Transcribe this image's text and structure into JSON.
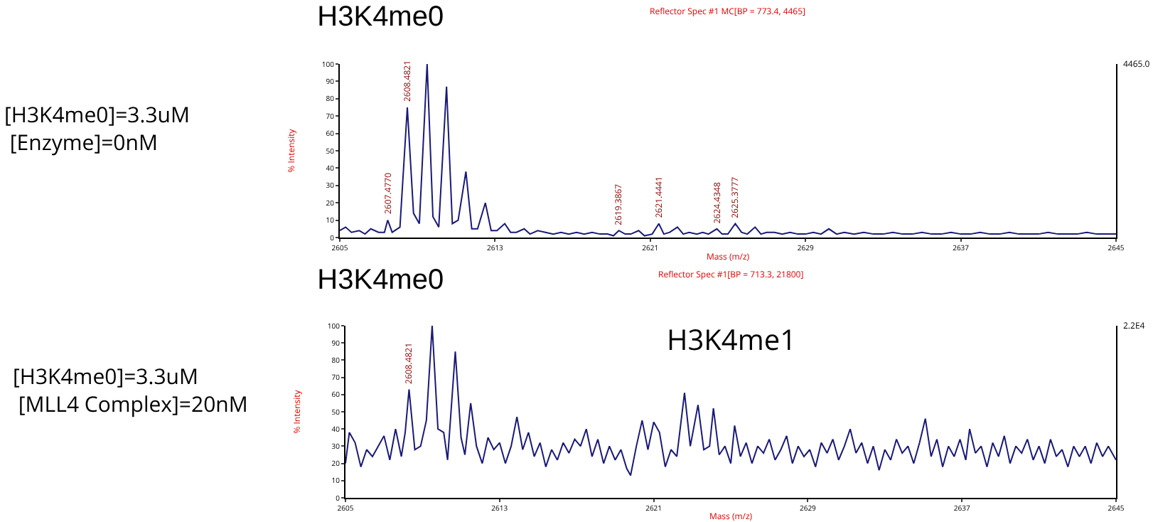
{
  "chart_data": [
    {
      "type": "line",
      "title": "H3K4me0",
      "subtitle": "Reflector Spec #1 MC[BP = 773.4, 4465]",
      "xlabel": "Mass (m/z)",
      "ylabel": "% Intensity",
      "xlim": [
        2605,
        2645
      ],
      "xticks": [
        2605,
        2613,
        2621,
        2629,
        2637,
        2645
      ],
      "ylim": [
        0,
        100
      ],
      "yticks": [
        0,
        10,
        20,
        30,
        40,
        50,
        60,
        70,
        80,
        90,
        100
      ],
      "grid": false,
      "marker": "none",
      "line_style": "solid",
      "series": [
        {
          "color": "#1a1a7a",
          "x": [
            2605,
            2605.3,
            2605.6,
            2606,
            2606.3,
            2606.6,
            2607,
            2607.3,
            2607.47,
            2607.7,
            2608.1,
            2608.48,
            2608.8,
            2609.1,
            2609.5,
            2609.8,
            2610.1,
            2610.5,
            2610.8,
            2611.1,
            2611.5,
            2611.8,
            2612.1,
            2612.5,
            2612.8,
            2613.1,
            2613.5,
            2613.8,
            2614.1,
            2614.5,
            2614.8,
            2615.2,
            2615.6,
            2616,
            2616.4,
            2616.8,
            2617.2,
            2617.6,
            2618,
            2618.4,
            2618.8,
            2619.1,
            2619.38,
            2619.7,
            2620,
            2620.4,
            2620.7,
            2621.1,
            2621.44,
            2621.7,
            2622,
            2622.4,
            2622.7,
            2623,
            2623.4,
            2623.7,
            2624,
            2624.43,
            2624.7,
            2625,
            2625.38,
            2625.7,
            2626,
            2626.4,
            2626.7,
            2627,
            2627.4,
            2627.8,
            2628.2,
            2628.6,
            2629,
            2629.4,
            2629.8,
            2630.2,
            2630.6,
            2631,
            2631.5,
            2632,
            2632.5,
            2633,
            2633.5,
            2634,
            2634.5,
            2635,
            2635.5,
            2636,
            2636.5,
            2637,
            2637.5,
            2638,
            2638.5,
            2639,
            2639.5,
            2640,
            2640.5,
            2641,
            2641.5,
            2642,
            2642.5,
            2643,
            2643.5,
            2644,
            2644.5,
            2645
          ],
          "values": [
            4,
            6,
            3,
            4,
            2,
            5,
            3,
            3,
            10,
            3,
            6,
            75,
            14,
            8,
            100,
            12,
            6,
            87,
            8,
            10,
            38,
            5,
            5,
            20,
            4,
            4,
            8,
            3,
            3,
            5,
            2,
            4,
            3,
            2,
            3,
            2,
            3,
            2,
            3,
            2,
            2,
            1,
            4,
            2,
            2,
            4,
            1,
            2,
            8,
            2,
            3,
            6,
            2,
            3,
            2,
            3,
            2,
            5,
            2,
            2,
            8,
            3,
            2,
            6,
            2,
            3,
            3,
            2,
            3,
            2,
            2,
            3,
            2,
            5,
            2,
            3,
            2,
            3,
            2,
            2,
            3,
            2,
            2,
            3,
            2,
            2,
            3,
            2,
            2,
            3,
            2,
            2,
            3,
            2,
            2,
            2,
            3,
            2,
            2,
            2,
            3,
            2,
            2,
            2
          ]
        }
      ],
      "annotations": [
        "[H3K4me0]=3.3uM\n [Enzyme]=0nM",
        "4465.0",
        {
          "text": "2607.4770",
          "x": 2607.47,
          "y": 10
        },
        {
          "text": "2608.4821",
          "x": 2608.48,
          "y": 75
        },
        {
          "text": "2619.3867",
          "x": 2619.38,
          "y": 4
        },
        {
          "text": "2621.4441",
          "x": 2621.44,
          "y": 8
        },
        {
          "text": "2624.4348",
          "x": 2624.43,
          "y": 5
        },
        {
          "text": "2625.3777",
          "x": 2625.38,
          "y": 8
        }
      ]
    },
    {
      "type": "line",
      "title": "H3K4me0",
      "subtitle": "Reflector Spec #1[BP = 713.3, 21800]",
      "xlabel": "Mass (m/z)",
      "ylabel": "% Intensity",
      "xlim": [
        2605,
        2645
      ],
      "xticks": [
        2605,
        2613,
        2621,
        2629,
        2637,
        2645
      ],
      "ylim": [
        0,
        100
      ],
      "yticks": [
        0,
        10,
        20,
        30,
        40,
        50,
        60,
        70,
        80,
        90,
        100
      ],
      "grid": false,
      "marker": "none",
      "line_style": "solid",
      "series": [
        {
          "color": "#1a1a7a",
          "x": [
            2605,
            2605.2,
            2605.5,
            2605.8,
            2606.1,
            2606.4,
            2606.7,
            2607,
            2607.3,
            2607.6,
            2607.9,
            2608.1,
            2608.3,
            2608.6,
            2608.9,
            2609.2,
            2609.5,
            2609.8,
            2610.1,
            2610.3,
            2610.7,
            2611,
            2611.2,
            2611.5,
            2611.8,
            2612.1,
            2612.4,
            2612.7,
            2613,
            2613.3,
            2613.6,
            2613.9,
            2614.2,
            2614.5,
            2614.8,
            2615.1,
            2615.4,
            2615.7,
            2616,
            2616.3,
            2616.6,
            2616.9,
            2617.2,
            2617.5,
            2617.8,
            2618.1,
            2618.4,
            2618.7,
            2619,
            2619.3,
            2619.6,
            2619.8,
            2620.1,
            2620.4,
            2620.7,
            2621,
            2621.3,
            2621.6,
            2621.9,
            2622.2,
            2622.6,
            2622.9,
            2623.3,
            2623.6,
            2623.9,
            2624.1,
            2624.4,
            2624.7,
            2625,
            2625.2,
            2625.5,
            2625.8,
            2626.1,
            2626.4,
            2626.7,
            2627,
            2627.3,
            2627.6,
            2627.9,
            2628.2,
            2628.5,
            2628.8,
            2629.1,
            2629.4,
            2629.7,
            2630,
            2630.3,
            2630.6,
            2630.9,
            2631.2,
            2631.5,
            2631.8,
            2632.1,
            2632.4,
            2632.7,
            2633,
            2633.3,
            2633.6,
            2633.9,
            2634.2,
            2634.5,
            2634.8,
            2635.1,
            2635.4,
            2635.7,
            2636,
            2636.3,
            2636.6,
            2636.9,
            2637.2,
            2637.4,
            2637.7,
            2638,
            2638.3,
            2638.6,
            2638.9,
            2639.2,
            2639.5,
            2639.8,
            2640.1,
            2640.4,
            2640.7,
            2641,
            2641.3,
            2641.6,
            2641.9,
            2642.2,
            2642.5,
            2642.8,
            2643.1,
            2643.4,
            2643.7,
            2644,
            2644.3,
            2644.6,
            2645
          ],
          "values": [
            20,
            38,
            32,
            18,
            28,
            24,
            30,
            36,
            22,
            40,
            24,
            38,
            63,
            28,
            30,
            45,
            100,
            40,
            38,
            22,
            85,
            35,
            25,
            55,
            30,
            20,
            35,
            28,
            32,
            20,
            30,
            47,
            28,
            38,
            24,
            32,
            18,
            28,
            22,
            32,
            26,
            34,
            30,
            40,
            24,
            34,
            20,
            30,
            22,
            28,
            17,
            13,
            30,
            45,
            28,
            44,
            38,
            18,
            28,
            24,
            61,
            30,
            54,
            28,
            30,
            52,
            25,
            30,
            20,
            42,
            24,
            32,
            20,
            30,
            26,
            34,
            22,
            28,
            36,
            20,
            30,
            24,
            28,
            18,
            32,
            26,
            34,
            22,
            30,
            40,
            26,
            32,
            20,
            30,
            16,
            28,
            22,
            34,
            26,
            30,
            20,
            32,
            46,
            24,
            34,
            18,
            30,
            24,
            34,
            22,
            40,
            26,
            30,
            18,
            32,
            24,
            36,
            20,
            30,
            26,
            34,
            22,
            30,
            20,
            34,
            24,
            28,
            18,
            30,
            24,
            30,
            20,
            32,
            24,
            30,
            22
          ]
        }
      ],
      "annotations": [
        "[H3K4me0]=3.3uM\n [MLL4 Complex]=20nM",
        "2.2E4",
        "H3K4me1",
        {
          "text": "2608.4821",
          "x": 2608.3,
          "y": 63
        }
      ]
    }
  ]
}
